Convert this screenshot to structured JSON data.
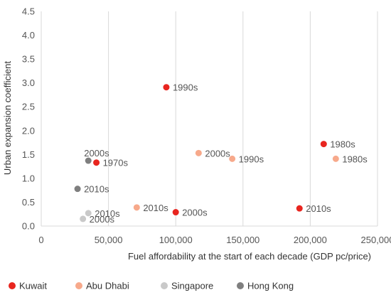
{
  "chart_data": {
    "type": "scatter",
    "xlabel": "Fuel affordability at the start of each decade (GDP pc/price)",
    "ylabel": "Urban expansion coefficient",
    "xlim": [
      0,
      250000
    ],
    "ylim": [
      0,
      4.5
    ],
    "x_ticks": [
      0,
      50000,
      100000,
      150000,
      200000,
      250000
    ],
    "x_tick_labels": [
      "0",
      "50,000",
      "100,000",
      "150,000",
      "200,000",
      "250,000"
    ],
    "y_ticks": [
      0,
      0.5,
      1.0,
      1.5,
      2.0,
      2.5,
      3.0,
      3.5,
      4.0,
      4.5
    ],
    "y_tick_labels": [
      "0.0",
      "0.5",
      "1.0",
      "1.5",
      "2.0",
      "2.5",
      "3.0",
      "3.5",
      "4.0",
      "4.5"
    ],
    "grid": "vertical",
    "legend_position": "bottom",
    "series": [
      {
        "name": "Kuwait",
        "color": "#e8251f",
        "points": [
          {
            "x": 41000,
            "y": 1.33,
            "label": "1970s",
            "label_side": "right"
          },
          {
            "x": 210000,
            "y": 1.72,
            "label": "1980s",
            "label_side": "right"
          },
          {
            "x": 93000,
            "y": 2.91,
            "label": "1990s",
            "label_side": "right"
          },
          {
            "x": 100000,
            "y": 0.29,
            "label": "2000s",
            "label_side": "right"
          },
          {
            "x": 192000,
            "y": 0.37,
            "label": "2010s",
            "label_side": "right"
          }
        ]
      },
      {
        "name": "Abu Dhabi",
        "color": "#f7a98b",
        "points": [
          {
            "x": 219000,
            "y": 1.41,
            "label": "1980s",
            "label_side": "right"
          },
          {
            "x": 142000,
            "y": 1.41,
            "label": "1990s",
            "label_side": "right"
          },
          {
            "x": 117000,
            "y": 1.53,
            "label": "2000s",
            "label_side": "right"
          },
          {
            "x": 71000,
            "y": 0.39,
            "label": "2010s",
            "label_side": "right"
          }
        ]
      },
      {
        "name": "Singapore",
        "color": "#c9c9c9",
        "points": [
          {
            "x": 31000,
            "y": 0.15,
            "label": "2000s",
            "label_side": "right"
          },
          {
            "x": 35000,
            "y": 0.27,
            "label": "2010s",
            "label_side": "right"
          }
        ]
      },
      {
        "name": "Hong Kong",
        "color": "#7f7f7f",
        "points": [
          {
            "x": 35000,
            "y": 1.37,
            "label": "2000s",
            "label_side": "above"
          },
          {
            "x": 27000,
            "y": 0.78,
            "label": "2010s",
            "label_side": "right"
          }
        ]
      }
    ]
  }
}
